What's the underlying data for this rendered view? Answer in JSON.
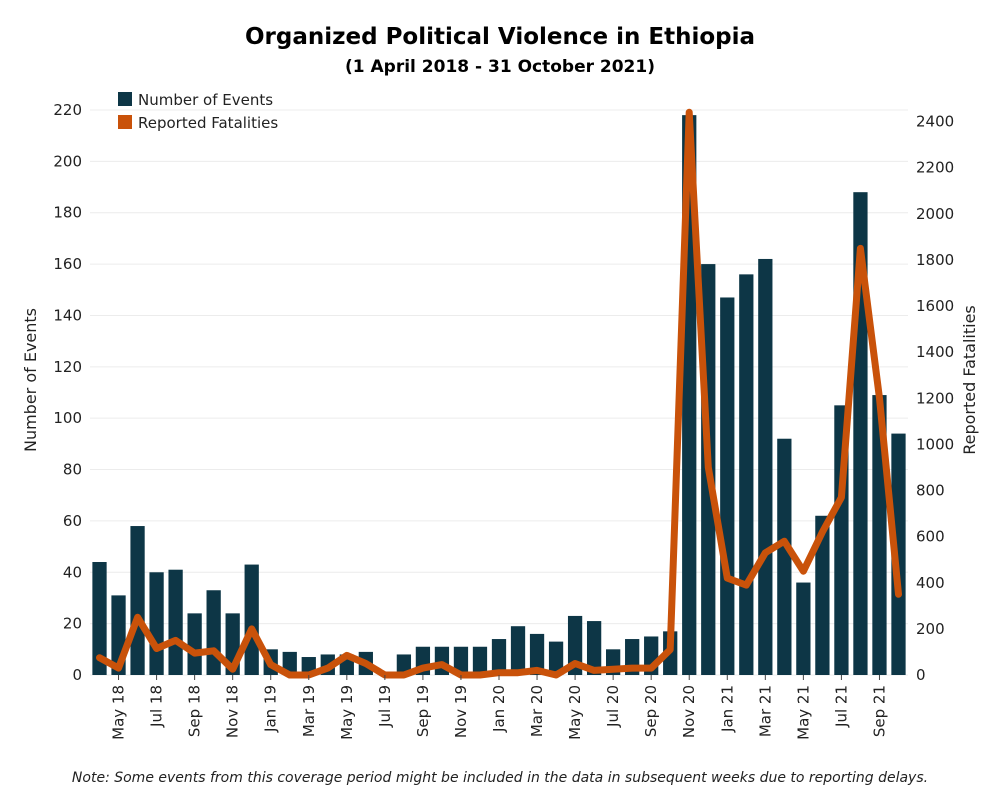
{
  "chart_data": {
    "type": "bar",
    "title": "Organized Political Violence in Ethiopia",
    "subtitle": "(1 April 2018 - 31 October 2021)",
    "ylabel": "Number of Events",
    "y2label": "Reported Fatalities",
    "ylim": [
      0,
      220
    ],
    "y2lim": [
      0,
      2450
    ],
    "yticks": [
      0,
      20,
      40,
      60,
      80,
      100,
      120,
      140,
      160,
      180,
      200,
      220
    ],
    "y2ticks": [
      0,
      200,
      400,
      600,
      800,
      1000,
      1200,
      1400,
      1600,
      1800,
      2000,
      2200,
      2400
    ],
    "categories": [
      "Apr 18",
      "May 18",
      "Jun 18",
      "Jul 18",
      "Aug 18",
      "Sep 18",
      "Oct 18",
      "Nov 18",
      "Dec 18",
      "Jan 19",
      "Feb 19",
      "Mar 19",
      "Apr 19",
      "May 19",
      "Jun 19",
      "Jul 19",
      "Aug 19",
      "Sep 19",
      "Oct 19",
      "Nov 19",
      "Dec 19",
      "Jan 20",
      "Feb 20",
      "Mar 20",
      "Apr 20",
      "May 20",
      "Jun 20",
      "Jul 20",
      "Aug 20",
      "Sep 20",
      "Oct 20",
      "Nov 20",
      "Dec 20",
      "Jan 21",
      "Feb 21",
      "Mar 21",
      "Apr 21",
      "May 21",
      "Jun 21",
      "Jul 21",
      "Aug 21",
      "Sep 21",
      "Oct 21"
    ],
    "xtick_labels": [
      "May 18",
      "Jul 18",
      "Sep 18",
      "Nov 18",
      "Jan 19",
      "Mar 19",
      "May 19",
      "Jul 19",
      "Sep 19",
      "Nov 19",
      "Jan 20",
      "Mar 20",
      "May 20",
      "Jul 20",
      "Sep 20",
      "Nov 20",
      "Jan 21",
      "Mar 21",
      "May 21",
      "Jul 21",
      "Sep 21"
    ],
    "series": [
      {
        "name": "Number of Events",
        "type": "bar",
        "axis": "left",
        "color": "#0d3646",
        "values": [
          44,
          31,
          58,
          40,
          41,
          24,
          33,
          24,
          43,
          10,
          9,
          7,
          8,
          8,
          9,
          0,
          8,
          11,
          11,
          11,
          11,
          14,
          19,
          16,
          13,
          23,
          21,
          10,
          14,
          15,
          17,
          218,
          160,
          147,
          156,
          162,
          92,
          36,
          62,
          105,
          188,
          109,
          94
        ]
      },
      {
        "name": "Reported Fatalities",
        "type": "line",
        "axis": "right",
        "color": "#c9520a",
        "values": [
          75,
          30,
          250,
          115,
          150,
          95,
          105,
          25,
          200,
          45,
          0,
          0,
          30,
          85,
          50,
          0,
          0,
          30,
          45,
          0,
          0,
          10,
          10,
          20,
          0,
          50,
          20,
          25,
          30,
          30,
          110,
          2440,
          900,
          420,
          390,
          530,
          580,
          450,
          620,
          770,
          1850,
          1200,
          350
        ]
      }
    ],
    "legend": "top-left",
    "grid": true,
    "note": "Note: Some events from this coverage period might be included in the data in subsequent weeks due to reporting delays."
  }
}
